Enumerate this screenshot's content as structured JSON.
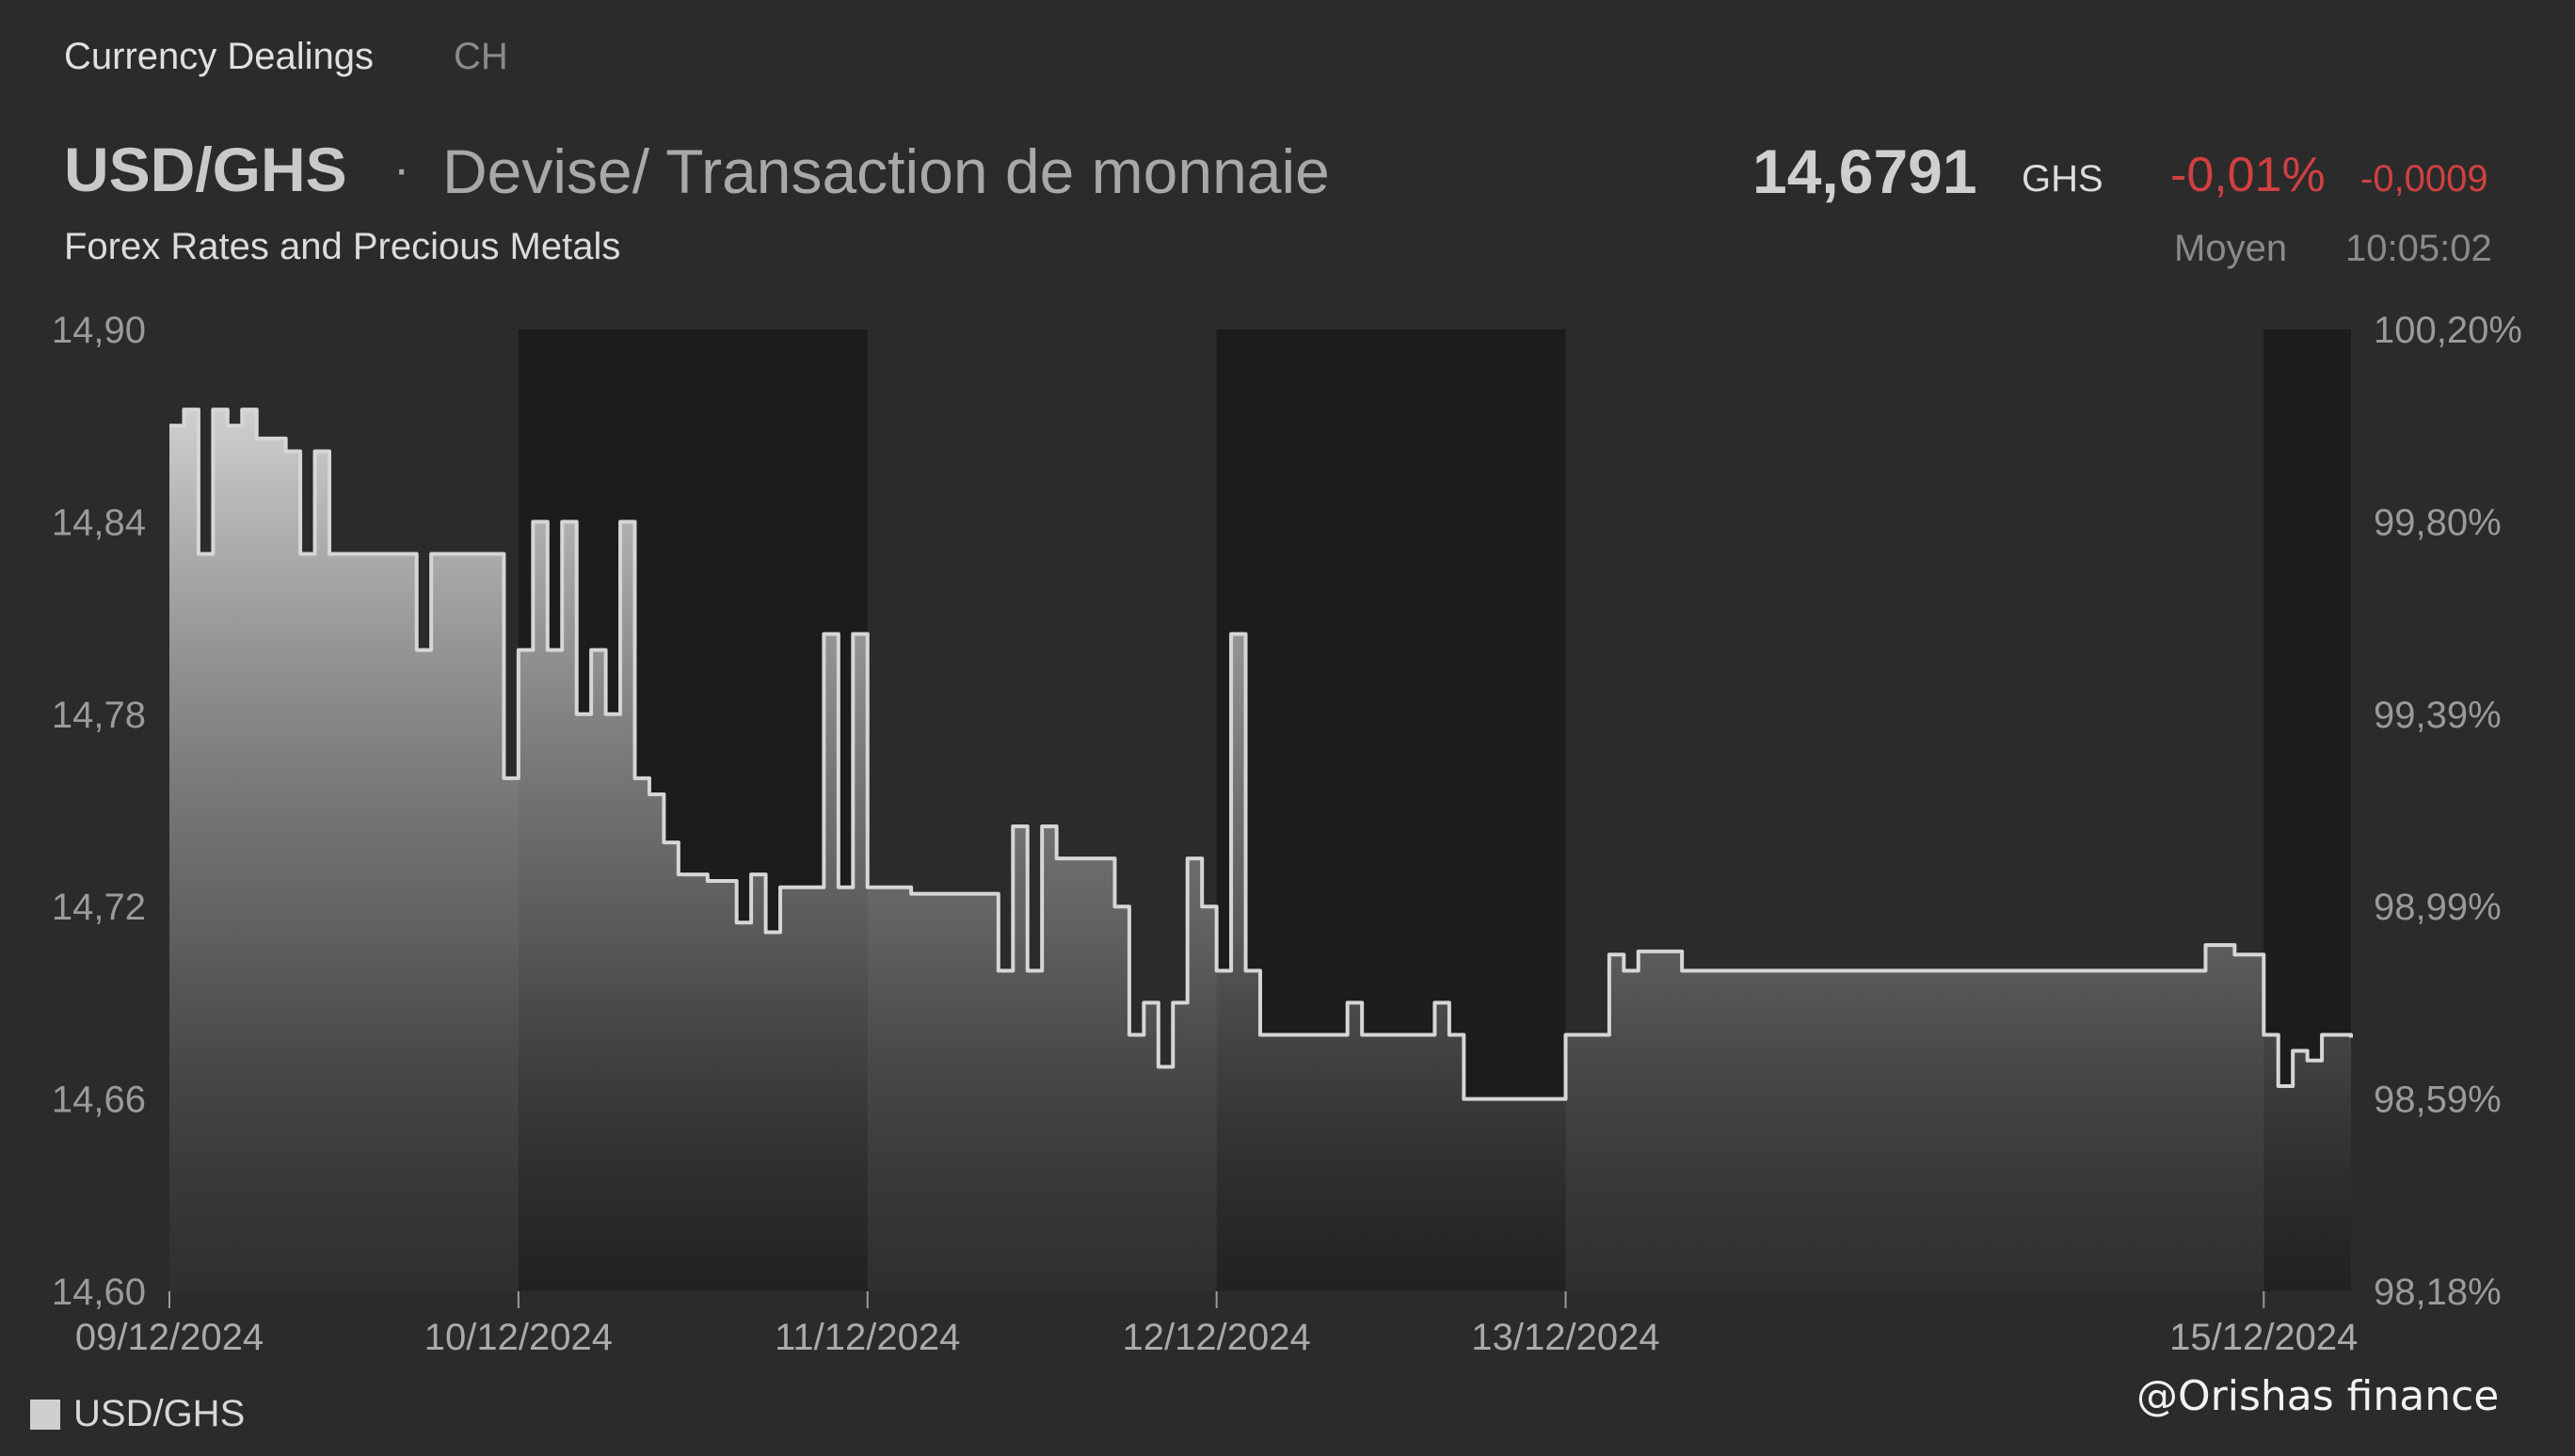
{
  "header": {
    "tabs": [
      {
        "label": "Currency Dealings",
        "active": true
      },
      {
        "label": "CH",
        "active": false
      }
    ],
    "symbol": "USD/GHS",
    "separator": "·",
    "instrument_name": "Devise/ Transaction de monnaie",
    "subtitle": "Forex Rates and Precious Metals",
    "price": "14,6791",
    "currency": "GHS",
    "change_percent": "-0,01%",
    "change_abs": "-0,0009",
    "price_type": "Moyen",
    "time": "10:05:02"
  },
  "legend": {
    "label": "USD/GHS",
    "color": "#cfcfcf"
  },
  "watermark": "@Orishas finance",
  "colors": {
    "background": "#2b2b2b",
    "shaded_band": "#1c1c1c",
    "line": "#d6d6d6",
    "negative": "#d04040"
  },
  "chart_data": {
    "type": "area",
    "title": "",
    "xlabel": "",
    "ylabel": "",
    "ylim": [
      14.6,
      14.9
    ],
    "y_ticks": [
      "14,90",
      "14,84",
      "14,78",
      "14,72",
      "14,66",
      "14,60"
    ],
    "y2_ticks": [
      "100,20%",
      "99,80%",
      "99,39%",
      "98,99%",
      "98,59%",
      "98,18%"
    ],
    "x_range": [
      "09/12/2024 00:00",
      "15/12/2024 06:00"
    ],
    "x_ticks": [
      {
        "label": "09/12/2024",
        "x": "09/12/2024 00:00"
      },
      {
        "label": "10/12/2024",
        "x": "10/12/2024 00:00"
      },
      {
        "label": "11/12/2024",
        "x": "11/12/2024 00:00"
      },
      {
        "label": "12/12/2024",
        "x": "12/12/2024 00:00"
      },
      {
        "label": "13/12/2024",
        "x": "13/12/2024 00:00"
      },
      {
        "label": "15/12/2024",
        "x": "15/12/2024 00:00"
      }
    ],
    "shaded_periods": [
      [
        "10/12/2024 00:00",
        "11/12/2024 00:00"
      ],
      [
        "12/12/2024 00:00",
        "13/12/2024 00:00"
      ],
      [
        "15/12/2024 00:00",
        "15/12/2024 06:00"
      ]
    ],
    "series": [
      {
        "name": "USD/GHS",
        "points": [
          [
            "09/12/2024 00:00",
            14.87
          ],
          [
            "09/12/2024 01:00",
            14.875
          ],
          [
            "09/12/2024 02:00",
            14.83
          ],
          [
            "09/12/2024 03:00",
            14.875
          ],
          [
            "09/12/2024 04:00",
            14.87
          ],
          [
            "09/12/2024 05:00",
            14.875
          ],
          [
            "09/12/2024 06:00",
            14.866
          ],
          [
            "09/12/2024 08:00",
            14.862
          ],
          [
            "09/12/2024 09:00",
            14.83
          ],
          [
            "09/12/2024 10:00",
            14.862
          ],
          [
            "09/12/2024 11:00",
            14.83
          ],
          [
            "09/12/2024 12:00",
            14.83
          ],
          [
            "09/12/2024 15:00",
            14.83
          ],
          [
            "09/12/2024 17:00",
            14.8
          ],
          [
            "09/12/2024 18:00",
            14.83
          ],
          [
            "09/12/2024 22:00",
            14.83
          ],
          [
            "09/12/2024 23:00",
            14.76
          ],
          [
            "10/12/2024 00:00",
            14.8
          ],
          [
            "10/12/2024 01:00",
            14.84
          ],
          [
            "10/12/2024 02:00",
            14.8
          ],
          [
            "10/12/2024 03:00",
            14.84
          ],
          [
            "10/12/2024 04:00",
            14.78
          ],
          [
            "10/12/2024 05:00",
            14.8
          ],
          [
            "10/12/2024 06:00",
            14.78
          ],
          [
            "10/12/2024 07:00",
            14.84
          ],
          [
            "10/12/2024 08:00",
            14.76
          ],
          [
            "10/12/2024 09:00",
            14.755
          ],
          [
            "10/12/2024 10:00",
            14.74
          ],
          [
            "10/12/2024 11:00",
            14.73
          ],
          [
            "10/12/2024 13:00",
            14.728
          ],
          [
            "10/12/2024 15:00",
            14.715
          ],
          [
            "10/12/2024 16:00",
            14.73
          ],
          [
            "10/12/2024 17:00",
            14.712
          ],
          [
            "10/12/2024 18:00",
            14.726
          ],
          [
            "10/12/2024 20:00",
            14.726
          ],
          [
            "10/12/2024 21:00",
            14.805
          ],
          [
            "10/12/2024 22:00",
            14.726
          ],
          [
            "10/12/2024 23:00",
            14.805
          ],
          [
            "11/12/2024 00:00",
            14.726
          ],
          [
            "11/12/2024 02:00",
            14.726
          ],
          [
            "11/12/2024 03:00",
            14.724
          ],
          [
            "11/12/2024 08:00",
            14.724
          ],
          [
            "11/12/2024 09:00",
            14.7
          ],
          [
            "11/12/2024 10:00",
            14.745
          ],
          [
            "11/12/2024 11:00",
            14.7
          ],
          [
            "11/12/2024 12:00",
            14.745
          ],
          [
            "11/12/2024 13:00",
            14.735
          ],
          [
            "11/12/2024 16:00",
            14.735
          ],
          [
            "11/12/2024 17:00",
            14.72
          ],
          [
            "11/12/2024 18:00",
            14.68
          ],
          [
            "11/12/2024 19:00",
            14.69
          ],
          [
            "11/12/2024 20:00",
            14.67
          ],
          [
            "11/12/2024 21:00",
            14.69
          ],
          [
            "11/12/2024 22:00",
            14.735
          ],
          [
            "11/12/2024 23:00",
            14.72
          ],
          [
            "12/12/2024 00:00",
            14.7
          ],
          [
            "12/12/2024 01:00",
            14.805
          ],
          [
            "12/12/2024 02:00",
            14.7
          ],
          [
            "12/12/2024 03:00",
            14.68
          ],
          [
            "12/12/2024 08:00",
            14.68
          ],
          [
            "12/12/2024 09:00",
            14.69
          ],
          [
            "12/12/2024 10:00",
            14.68
          ],
          [
            "12/12/2024 14:00",
            14.68
          ],
          [
            "12/12/2024 15:00",
            14.69
          ],
          [
            "12/12/2024 16:00",
            14.68
          ],
          [
            "12/12/2024 17:00",
            14.66
          ],
          [
            "12/12/2024 23:00",
            14.66
          ],
          [
            "13/12/2024 00:00",
            14.68
          ],
          [
            "13/12/2024 02:00",
            14.68
          ],
          [
            "13/12/2024 03:00",
            14.705
          ],
          [
            "13/12/2024 04:00",
            14.7
          ],
          [
            "13/12/2024 05:00",
            14.706
          ],
          [
            "13/12/2024 08:00",
            14.7
          ],
          [
            "13/12/2024 12:00",
            14.7
          ],
          [
            "13/12/2024 16:00",
            14.7
          ],
          [
            "14/12/2024 00:00",
            14.7
          ],
          [
            "14/12/2024 12:00",
            14.7
          ],
          [
            "14/12/2024 20:00",
            14.708
          ],
          [
            "14/12/2024 22:00",
            14.705
          ],
          [
            "15/12/2024 00:00",
            14.68
          ],
          [
            "15/12/2024 01:00",
            14.664
          ],
          [
            "15/12/2024 02:00",
            14.675
          ],
          [
            "15/12/2024 03:00",
            14.672
          ],
          [
            "15/12/2024 04:00",
            14.68
          ],
          [
            "15/12/2024 05:00",
            14.68
          ],
          [
            "15/12/2024 06:00",
            14.6791
          ]
        ]
      }
    ]
  }
}
